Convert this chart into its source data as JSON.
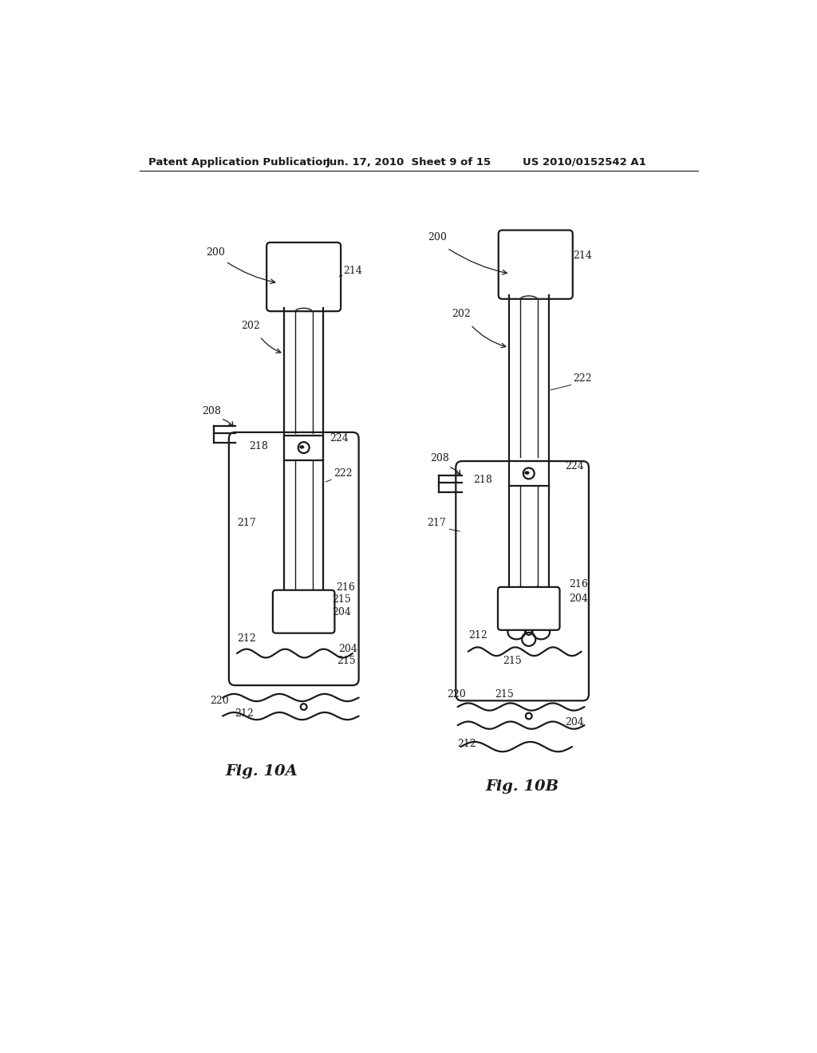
{
  "bg_color": "#ffffff",
  "header_text": "Patent Application Publication",
  "header_date": "Jun. 17, 2010  Sheet 9 of 15",
  "header_patent": "US 2010/0152542 A1",
  "fig_a_label": "Fig. 10A",
  "fig_b_label": "Fig. 10B",
  "line_color": "#1a1a1a",
  "lw": 1.6
}
